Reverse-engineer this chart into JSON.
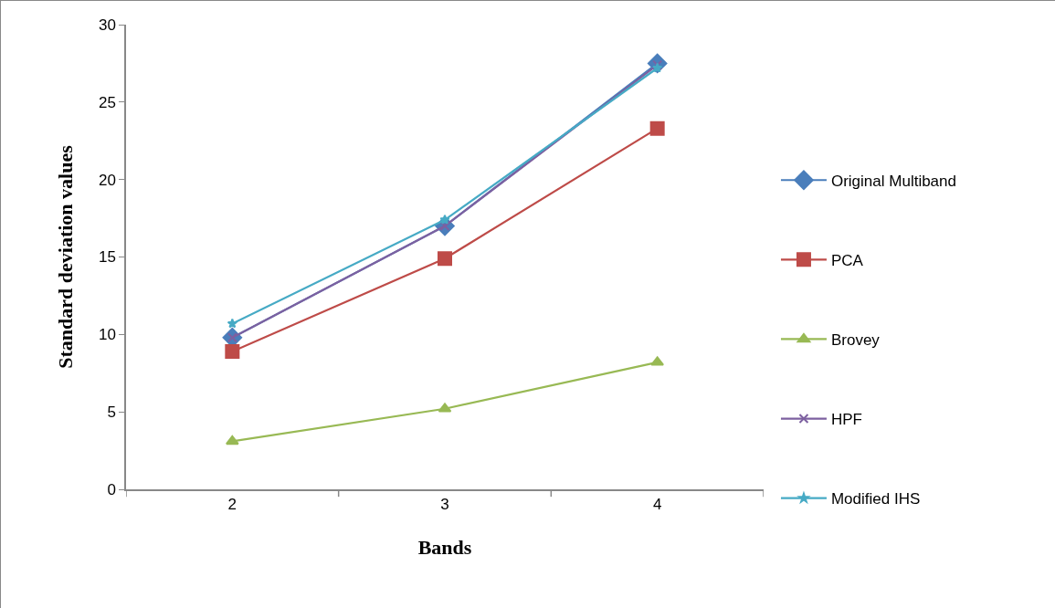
{
  "chart_data": {
    "type": "line",
    "xlabel": "Bands",
    "ylabel": "Standard deviation values",
    "categories": [
      "2",
      "3",
      "4"
    ],
    "series": [
      {
        "name": "Original Multiband",
        "color": "#4a7ebb",
        "marker": "diamond",
        "values": [
          9.8,
          17.0,
          27.5
        ]
      },
      {
        "name": "PCA",
        "color": "#be4b48",
        "marker": "square",
        "values": [
          8.9,
          14.9,
          23.3
        ]
      },
      {
        "name": "Brovey",
        "color": "#98b954",
        "marker": "triangle",
        "values": [
          3.1,
          5.2,
          8.2
        ]
      },
      {
        "name": "HPF",
        "color": "#7d60a0",
        "marker": "cross",
        "values": [
          9.8,
          17.0,
          27.4
        ]
      },
      {
        "name": "Modified IHS",
        "color": "#46aac5",
        "marker": "star",
        "values": [
          10.7,
          17.4,
          27.2
        ]
      }
    ],
    "ylim": [
      0,
      30
    ],
    "yticks": [
      0,
      5,
      10,
      15,
      20,
      25,
      30
    ],
    "grid": false,
    "legend": "right"
  }
}
